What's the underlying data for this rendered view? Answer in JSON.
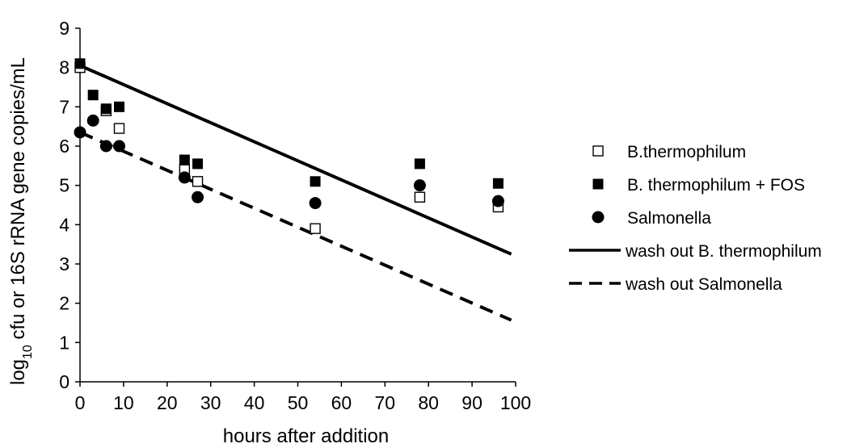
{
  "chart_data": {
    "type": "scatter",
    "xlabel": "hours after addition",
    "ylabel": {
      "prefix": "log",
      "sub": "10",
      "rest": " cfu or 16S rRNA gene copies/mL"
    },
    "xlim": [
      0,
      100
    ],
    "ylim": [
      0,
      9
    ],
    "xticks": [
      0,
      10,
      20,
      30,
      40,
      50,
      60,
      70,
      80,
      90,
      100
    ],
    "yticks": [
      0,
      1,
      2,
      3,
      4,
      5,
      6,
      7,
      8,
      9
    ],
    "grid": false,
    "legend_position": "right",
    "series": [
      {
        "name": "B.thermophilum",
        "kind": "points",
        "marker": "open-square",
        "points": [
          [
            0,
            8.0
          ],
          [
            6,
            6.9
          ],
          [
            9,
            6.45
          ],
          [
            24,
            5.4
          ],
          [
            27,
            5.1
          ],
          [
            54,
            3.9
          ],
          [
            78,
            4.7
          ],
          [
            96,
            4.45
          ]
        ]
      },
      {
        "name": "B. thermophilum + FOS",
        "kind": "points",
        "marker": "filled-square",
        "points": [
          [
            0,
            8.1
          ],
          [
            3,
            7.3
          ],
          [
            6,
            6.95
          ],
          [
            9,
            7.0
          ],
          [
            24,
            5.65
          ],
          [
            27,
            5.55
          ],
          [
            54,
            5.1
          ],
          [
            78,
            5.55
          ],
          [
            96,
            5.05
          ]
        ]
      },
      {
        "name": "Salmonella",
        "kind": "points",
        "marker": "filled-circle",
        "points": [
          [
            0,
            6.35
          ],
          [
            3,
            6.65
          ],
          [
            6,
            6.0
          ],
          [
            9,
            6.0
          ],
          [
            24,
            5.2
          ],
          [
            27,
            4.7
          ],
          [
            54,
            4.55
          ],
          [
            78,
            5.0
          ],
          [
            96,
            4.6
          ]
        ]
      },
      {
        "name": "wash out B. thermophilum",
        "kind": "line",
        "dash": "solid",
        "points": [
          [
            0,
            8.05
          ],
          [
            99,
            3.25
          ]
        ]
      },
      {
        "name": "wash out Salmonella",
        "kind": "line",
        "dash": "dashed",
        "points": [
          [
            0,
            6.35
          ],
          [
            99,
            1.57
          ]
        ]
      }
    ]
  }
}
